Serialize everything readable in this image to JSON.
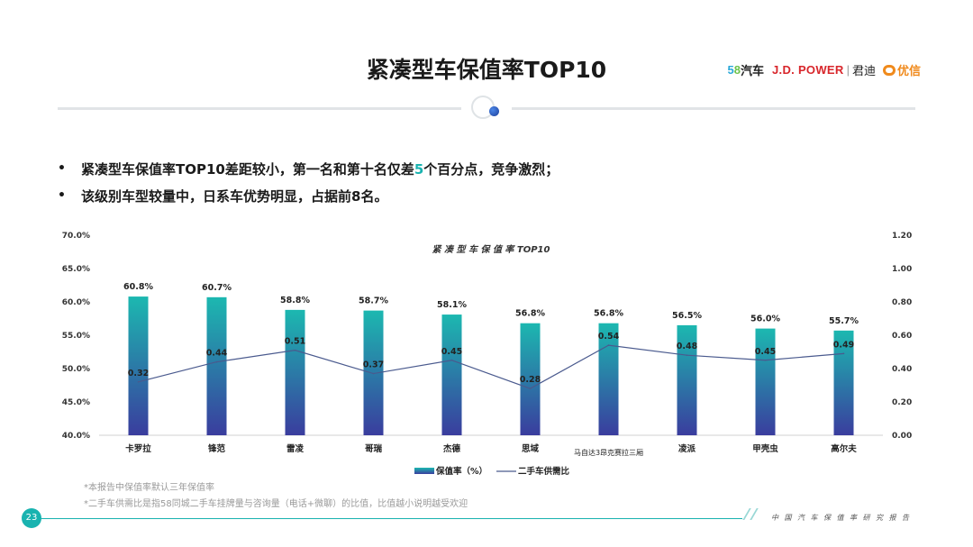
{
  "page": {
    "title": "紧凑型车保值率TOP10",
    "number": "23",
    "footer_text": "中国汽车保值率研究报告"
  },
  "logos": {
    "brand58_num5": "5",
    "brand58_num8": "8",
    "brand58_text": "汽车",
    "jdpower": "J.D. POWER",
    "separator": "|",
    "jundi": "君迪",
    "youxin": "优信"
  },
  "bullets": {
    "line1_before": "紧凑型车保值率TOP10差距较小，第一名和第十名仅差",
    "line1_highlight": "5",
    "line1_after": "个百分点，竞争激烈；",
    "line2": "该级别车型较量中，日系车优势明显，占据前8名。",
    "marker": "•"
  },
  "notes": {
    "note1": "*本报告中保值率默认三年保值率",
    "note2": "*二手车供需比是指58同城二手车挂牌量与咨询量（电话+微聊）的比值，比值越小说明越受欢迎"
  },
  "colors": {
    "accent": "#19b3b0",
    "bar_top": "#1cb8b0",
    "bar_bottom": "#3a3d9e",
    "line": "#4a5a8e"
  },
  "chart_data": {
    "type": "bar",
    "title": "紧 凑 型 车 保 值 率 TOP10",
    "categories": [
      "卡罗拉",
      "锋范",
      "雷凌",
      "哥瑞",
      "杰德",
      "思域",
      "马自达3昂克赛拉三厢",
      "凌派",
      "甲壳虫",
      "高尔夫"
    ],
    "series": [
      {
        "name": "保值率（%）",
        "type": "bar",
        "axis": "left",
        "values": [
          60.8,
          60.7,
          58.8,
          58.7,
          58.1,
          56.8,
          56.8,
          56.5,
          56.0,
          55.7
        ],
        "labels": [
          "60.8%",
          "60.7%",
          "58.8%",
          "58.7%",
          "58.1%",
          "56.8%",
          "56.8%",
          "56.5%",
          "56.0%",
          "55.7%"
        ]
      },
      {
        "name": "二手车供需比",
        "type": "line",
        "axis": "right",
        "values": [
          0.32,
          0.44,
          0.51,
          0.37,
          0.45,
          0.28,
          0.54,
          0.48,
          0.45,
          0.49
        ],
        "labels": [
          "0.32",
          "0.44",
          "0.51",
          "0.37",
          "0.45",
          "0.28",
          "0.54",
          "0.48",
          "0.45",
          "0.49"
        ]
      }
    ],
    "y_left": {
      "range": [
        40,
        70
      ],
      "ticks": [
        "40.0%",
        "45.0%",
        "50.0%",
        "55.0%",
        "60.0%",
        "65.0%",
        "70.0%"
      ],
      "tick_values": [
        40,
        45,
        50,
        55,
        60,
        65,
        70
      ]
    },
    "y_right": {
      "range": [
        0,
        1.2
      ],
      "ticks": [
        "0.00",
        "0.20",
        "0.40",
        "0.60",
        "0.80",
        "1.00",
        "1.20"
      ],
      "tick_values": [
        0,
        0.2,
        0.4,
        0.6,
        0.8,
        1.0,
        1.2
      ]
    },
    "legend_position": "bottom-center",
    "grid": false
  }
}
